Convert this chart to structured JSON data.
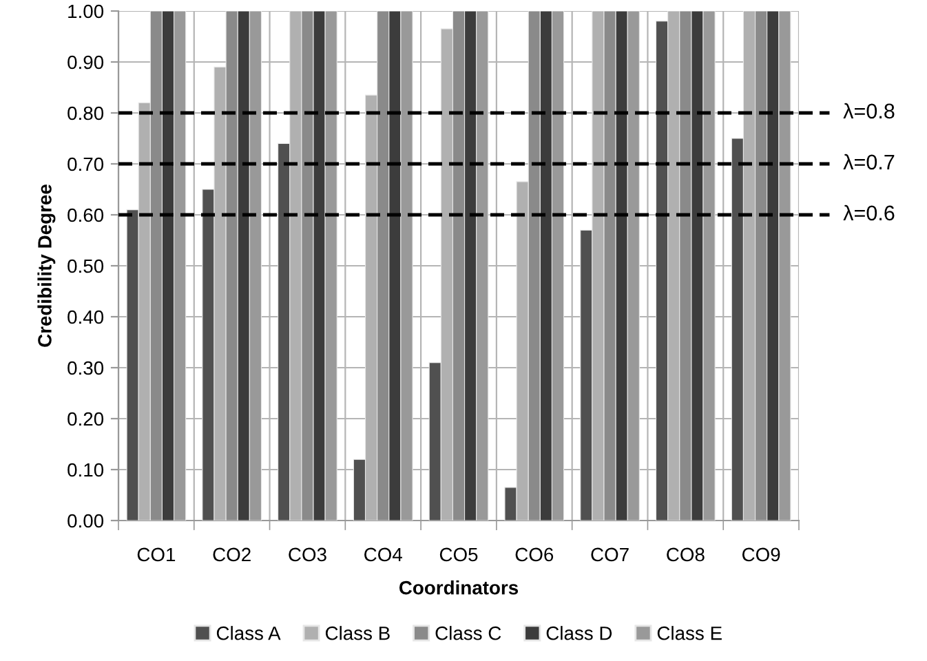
{
  "chart_data": {
    "type": "bar",
    "xlabel": "Coordinators",
    "ylabel": "Credibility Degree",
    "categories": [
      "CO1",
      "CO2",
      "CO3",
      "CO4",
      "CO5",
      "CO6",
      "CO7",
      "CO8",
      "CO9"
    ],
    "series": [
      {
        "name": "Class A",
        "color": "#505050",
        "values": [
          0.61,
          0.65,
          0.74,
          0.12,
          0.31,
          0.065,
          0.57,
          0.98,
          0.75
        ]
      },
      {
        "name": "Class B",
        "color": "#b0b0b0",
        "values": [
          0.82,
          0.89,
          1.0,
          0.835,
          0.965,
          0.665,
          1.0,
          1.0,
          1.0
        ]
      },
      {
        "name": "Class C",
        "color": "#8a8a8a",
        "values": [
          1.0,
          1.0,
          1.0,
          1.0,
          1.0,
          1.0,
          1.0,
          1.0,
          1.0
        ]
      },
      {
        "name": "Class D",
        "color": "#3c3c3c",
        "values": [
          1.0,
          1.0,
          1.0,
          1.0,
          1.0,
          1.0,
          1.0,
          1.0,
          1.0
        ]
      },
      {
        "name": "Class E",
        "color": "#999999",
        "values": [
          1.0,
          1.0,
          1.0,
          1.0,
          1.0,
          1.0,
          1.0,
          1.0,
          1.0
        ]
      }
    ],
    "ylim": [
      0,
      1.0
    ],
    "yticks": [
      {
        "value": 0,
        "label": "0.00"
      },
      {
        "value": 0.1,
        "label": "0.10"
      },
      {
        "value": 0.2,
        "label": "0.20"
      },
      {
        "value": 0.3,
        "label": "0.30"
      },
      {
        "value": 0.4,
        "label": "0.40"
      },
      {
        "value": 0.5,
        "label": "0.50"
      },
      {
        "value": 0.6,
        "label": "0.60"
      },
      {
        "value": 0.7,
        "label": "0.70"
      },
      {
        "value": 0.8,
        "label": "0.80"
      },
      {
        "value": 0.9,
        "label": "0.90"
      },
      {
        "value": 1.0,
        "label": "1.00"
      }
    ],
    "ref_lines": [
      {
        "axis": "y",
        "value": 0.8,
        "label": "λ=0.8",
        "color": "#000000",
        "line_style": "dashed"
      },
      {
        "axis": "y",
        "value": 0.7,
        "label": "λ=0.7",
        "color": "#000000",
        "line_style": "dashed"
      },
      {
        "axis": "y",
        "value": 0.6,
        "label": "λ=0.6",
        "color": "#000000",
        "line_style": "dashed"
      }
    ],
    "grid": true,
    "legend": "bottom"
  }
}
